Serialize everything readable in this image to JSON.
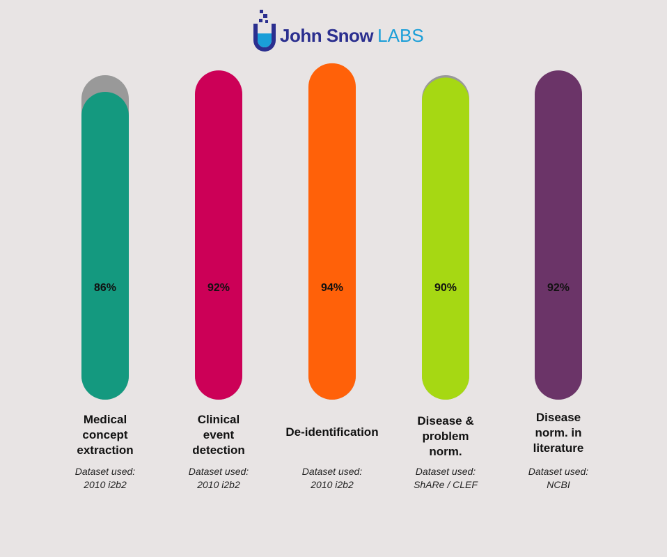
{
  "brand": {
    "name": "John Snow",
    "suffix": "LABS"
  },
  "chart_data": {
    "type": "bar",
    "orientation": "vertical",
    "ylim": [
      0,
      100
    ],
    "categories": [
      "Medical concept extraction",
      "Clinical event detection",
      "De-identification",
      "Disease & problem norm.",
      "Disease norm. in literature"
    ],
    "values": [
      86,
      92,
      94,
      90,
      92
    ],
    "value_labels": [
      "86%",
      "92%",
      "94%",
      "90%",
      "92%"
    ],
    "dataset_caption": "Dataset used:",
    "datasets": [
      "2010 i2b2",
      "2010 i2b2",
      "2010 i2b2",
      "ShARe / CLEF",
      "NCBI"
    ],
    "colors": [
      "#14997f",
      "#cc0057",
      "#ff6109",
      "#a6d813",
      "#6b3468"
    ],
    "track_color": "#999999",
    "grid": false
  }
}
